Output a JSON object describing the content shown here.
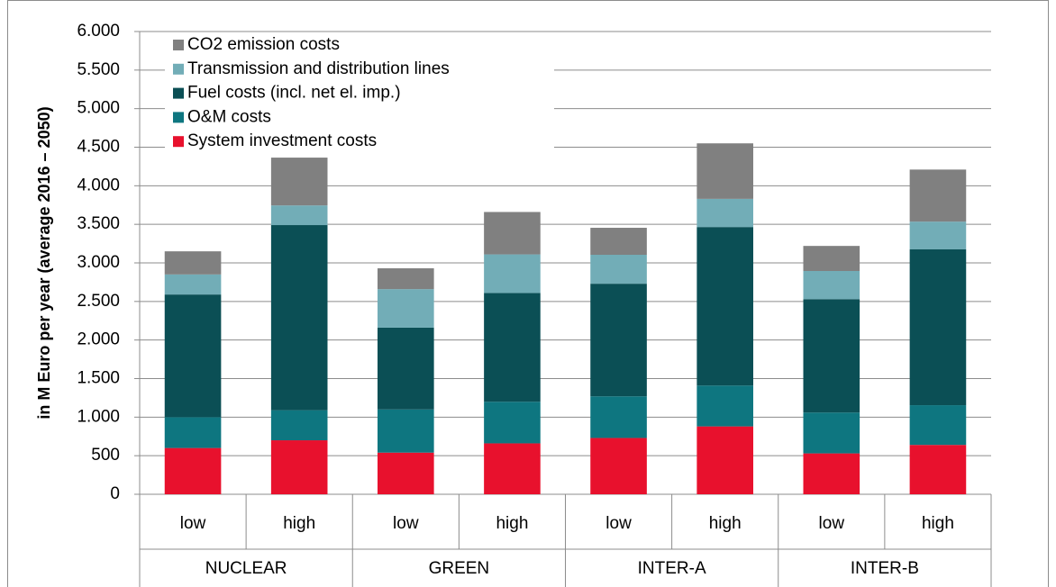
{
  "chart_data": {
    "type": "stacked_bar",
    "y_axis_label": "in M Euro per year (average 2016 – 2050)",
    "categories": [
      "low",
      "high",
      "low",
      "high",
      "low",
      "high",
      "low",
      "high"
    ],
    "groups": [
      "NUCLEAR",
      "GREEN",
      "INTER-A",
      "INTER-B"
    ],
    "series": [
      {
        "name": "System investment costs",
        "color": "#e8112d",
        "values": [
          600,
          700,
          540,
          660,
          730,
          880,
          530,
          640
        ]
      },
      {
        "name": "O&M costs",
        "color": "#0e7680",
        "values": [
          400,
          390,
          560,
          540,
          540,
          530,
          530,
          515
        ]
      },
      {
        "name": "Fuel costs (incl. net el. imp.)",
        "color": "#0b4f55",
        "values": [
          1590,
          2400,
          1060,
          1410,
          1460,
          2055,
          1470,
          2020
        ]
      },
      {
        "name": "Transmission and distribution lines",
        "color": "#72adb7",
        "values": [
          260,
          255,
          500,
          500,
          375,
          365,
          365,
          360
        ]
      },
      {
        "name": "CO2 emission costs",
        "color": "#808080",
        "values": [
          300,
          620,
          270,
          550,
          350,
          720,
          325,
          675
        ]
      }
    ],
    "ylim": [
      0,
      6000
    ],
    "yticks": [
      0,
      500,
      {
        "value": 1000,
        "label": "1.000"
      },
      {
        "value": 1500,
        "label": "1.500"
      },
      {
        "value": 2000,
        "label": "2.000"
      },
      {
        "value": 2500,
        "label": "2.500"
      },
      {
        "value": 3000,
        "label": "3.000"
      },
      {
        "value": 3500,
        "label": "3.500"
      },
      {
        "value": 4000,
        "label": "4.000"
      },
      {
        "value": 4500,
        "label": "4.500"
      },
      {
        "value": 5000,
        "label": "5.000"
      },
      {
        "value": 5500,
        "label": "5.500"
      },
      {
        "value": 6000,
        "label": "6.000"
      }
    ],
    "grid": true
  }
}
